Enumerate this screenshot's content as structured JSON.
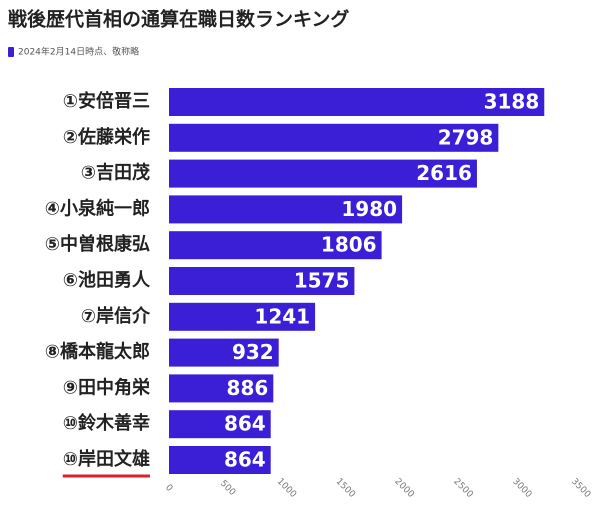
{
  "chart_data": {
    "type": "bar",
    "orientation": "horizontal",
    "title": "戦後歴代首相の通算在職日数ランキング",
    "series": [
      {
        "name": "2024年2月14日時点、敬称略",
        "color": "#3b1fd6",
        "values": [
          3188,
          2798,
          2616,
          1980,
          1806,
          1575,
          1241,
          932,
          886,
          864,
          864
        ]
      }
    ],
    "categories": [
      "①安倍晋三",
      "②佐藤栄作",
      "③吉田茂",
      "④小泉純一郎",
      "⑤中曽根康弘",
      "⑥池田勇人",
      "⑦岸信介",
      "⑧橋本龍太郎",
      "⑨田中角栄",
      "⑩鈴木善幸",
      "⑩岸田文雄"
    ],
    "xlim": [
      0,
      3500
    ],
    "xticks": [
      0,
      500,
      1000,
      1500,
      2000,
      2500,
      3000,
      3500
    ]
  }
}
